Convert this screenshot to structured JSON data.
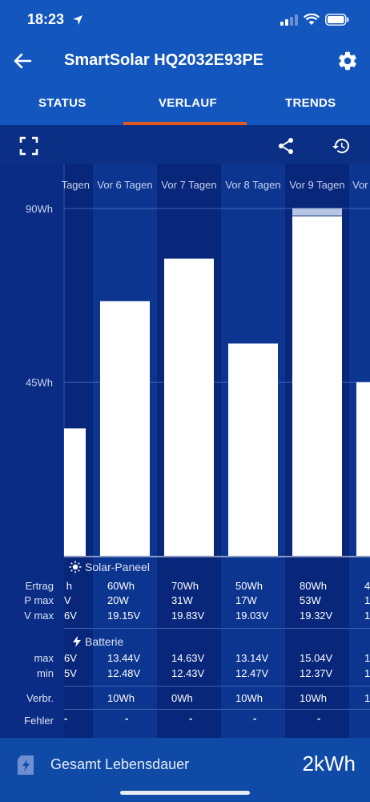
{
  "status_bar": {
    "time": "18:23"
  },
  "header": {
    "title": "SmartSolar HQ2032E93PE",
    "tabs": [
      {
        "label": "STATUS"
      },
      {
        "label": "VERLAUF"
      },
      {
        "label": "TRENDS"
      }
    ],
    "active_tab": "VERLAUF"
  },
  "toolbar": {
    "icons": [
      "fullscreen-icon",
      "share-icon",
      "history-icon"
    ]
  },
  "chart_data": {
    "type": "bar",
    "categories": [
      "Tagen",
      "Vor 6 Tagen",
      "Vor 7 Tagen",
      "Vor 8 Tagen",
      "Vor 9 Tagen",
      "Vor"
    ],
    "values": [
      33,
      66,
      77,
      55,
      88,
      45
    ],
    "y_ticks": [
      "90Wh",
      "45Wh"
    ],
    "ylim": [
      0,
      90
    ],
    "ylabel": "",
    "grid": true,
    "colors": {
      "bar": "#ffffff",
      "bar_overflow_cap": "#b7c5e4",
      "band_dark": "#08267a",
      "band_light": "#0c3590"
    }
  },
  "table": {
    "solar_section": "Solar-Paneel",
    "battery_section": "Batterie",
    "labels": {
      "ertrag": "Ertrag",
      "pmax": "P max",
      "vmax": "V max",
      "bmax": "max",
      "bmin": "min",
      "verbr": "Verbr.",
      "fehler": "Fehler"
    },
    "columns": [
      {
        "ertrag": "h",
        "pmax": "V",
        "vmax": "6V",
        "bmax": "6V",
        "bmin": "5V",
        "verbr": "",
        "fehler": "-"
      },
      {
        "ertrag": "60Wh",
        "pmax": "20W",
        "vmax": "19.15V",
        "bmax": "13.44V",
        "bmin": "12.48V",
        "verbr": "10Wh",
        "fehler": "-"
      },
      {
        "ertrag": "70Wh",
        "pmax": "31W",
        "vmax": "19.83V",
        "bmax": "14.63V",
        "bmin": "12.43V",
        "verbr": "0Wh",
        "fehler": "-"
      },
      {
        "ertrag": "50Wh",
        "pmax": "17W",
        "vmax": "19.03V",
        "bmax": "13.14V",
        "bmin": "12.47V",
        "verbr": "10Wh",
        "fehler": "-"
      },
      {
        "ertrag": "80Wh",
        "pmax": "53W",
        "vmax": "19.32V",
        "bmax": "15.04V",
        "bmin": "12.37V",
        "verbr": "10Wh",
        "fehler": "-"
      },
      {
        "ertrag": "4",
        "pmax": "1",
        "vmax": "1",
        "bmax": "1",
        "bmin": "1",
        "verbr": "1",
        "fehler": ""
      }
    ]
  },
  "lifetime": {
    "label": "Gesamt Lebensdauer",
    "value": "2kWh"
  }
}
